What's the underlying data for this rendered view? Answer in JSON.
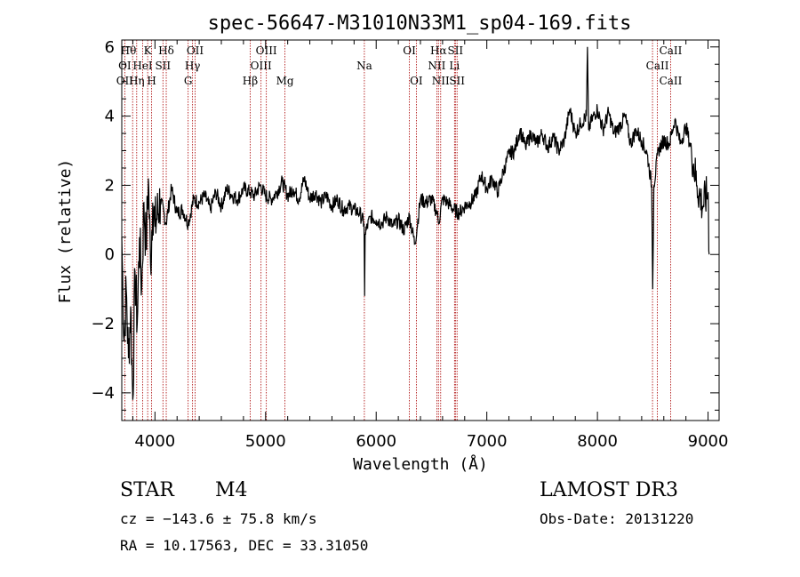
{
  "chart_data": {
    "type": "line",
    "title": "spec-56647-M31010N33M1_sp04-169.fits",
    "xlabel": "Wavelength (Å)",
    "ylabel": "Flux (relative)",
    "xlim": [
      3700,
      9100
    ],
    "ylim": [
      -4.8,
      6.2
    ],
    "xticks": [
      4000,
      5000,
      6000,
      7000,
      8000,
      9000
    ],
    "yticks": [
      -4,
      -2,
      0,
      2,
      4,
      6
    ],
    "series": [
      {
        "name": "flux",
        "x": [
          3700,
          3720,
          3740,
          3760,
          3780,
          3800,
          3820,
          3840,
          3860,
          3880,
          3900,
          3920,
          3940,
          3960,
          3980,
          4000,
          4050,
          4100,
          4150,
          4200,
          4250,
          4300,
          4350,
          4400,
          4450,
          4500,
          4550,
          4600,
          4650,
          4700,
          4750,
          4800,
          4860,
          4900,
          4950,
          5000,
          5050,
          5100,
          5150,
          5200,
          5250,
          5300,
          5350,
          5400,
          5450,
          5500,
          5550,
          5600,
          5650,
          5700,
          5750,
          5800,
          5850,
          5890,
          5895,
          5900,
          5950,
          6000,
          6050,
          6100,
          6150,
          6200,
          6250,
          6300,
          6350,
          6400,
          6450,
          6500,
          6550,
          6563,
          6600,
          6650,
          6700,
          6750,
          6800,
          6850,
          6900,
          6950,
          7000,
          7050,
          7100,
          7150,
          7200,
          7250,
          7300,
          7350,
          7400,
          7450,
          7500,
          7550,
          7600,
          7650,
          7700,
          7750,
          7800,
          7850,
          7900,
          7910,
          7920,
          7950,
          8000,
          8050,
          8100,
          8150,
          8200,
          8250,
          8300,
          8350,
          8400,
          8450,
          8490,
          8500,
          8510,
          8550,
          8600,
          8650,
          8700,
          8750,
          8800,
          8850,
          8900,
          8950,
          9000,
          9010
        ],
        "y": [
          0.5,
          -2.5,
          -1.0,
          -3.0,
          -1.5,
          -4.2,
          -0.5,
          -2.0,
          0.5,
          -1.0,
          1.5,
          0.2,
          2.2,
          -0.3,
          1.5,
          0.8,
          1.6,
          0.9,
          1.9,
          1.2,
          1.3,
          0.9,
          1.6,
          1.5,
          1.7,
          1.3,
          1.8,
          1.4,
          1.9,
          1.7,
          1.6,
          1.9,
          1.8,
          1.7,
          2.0,
          1.7,
          1.6,
          1.8,
          2.1,
          1.7,
          1.9,
          1.6,
          2.2,
          1.6,
          1.8,
          1.5,
          1.7,
          1.4,
          1.6,
          1.3,
          1.4,
          1.3,
          1.2,
          0.9,
          -1.2,
          0.6,
          1.1,
          1.0,
          0.9,
          1.1,
          0.8,
          1.0,
          0.7,
          1.1,
          0.3,
          1.6,
          1.5,
          1.6,
          1.2,
          0.9,
          1.6,
          1.5,
          1.3,
          1.2,
          1.4,
          1.5,
          1.7,
          2.3,
          1.9,
          2.2,
          1.8,
          2.4,
          2.9,
          3.0,
          3.6,
          3.1,
          3.5,
          3.2,
          3.5,
          3.1,
          3.4,
          3.0,
          3.3,
          4.2,
          3.5,
          3.8,
          4.0,
          6.0,
          3.6,
          3.9,
          4.2,
          3.6,
          4.1,
          3.5,
          3.7,
          4.0,
          3.2,
          3.6,
          3.3,
          2.9,
          2.0,
          -1.0,
          2.0,
          3.0,
          3.3,
          3.2,
          3.9,
          3.2,
          3.7,
          3.0,
          2.0,
          1.4,
          1.8,
          0.0
        ]
      }
    ],
    "line_markers": {
      "wavelengths": [
        3727,
        3798,
        3835,
        3889,
        3934,
        3970,
        4072,
        4102,
        4300,
        4340,
        4363,
        4861,
        4959,
        5007,
        5175,
        5893,
        6300,
        6363,
        6548,
        6563,
        6583,
        6708,
        6716,
        6731,
        8498,
        8542,
        8662
      ],
      "labels": [
        {
          "text": "Hθ",
          "wl": 3760,
          "row": 1
        },
        {
          "text": "K",
          "wl": 3934,
          "row": 1
        },
        {
          "text": "Hδ",
          "wl": 4102,
          "row": 1
        },
        {
          "text": "OII",
          "wl": 4363,
          "row": 1
        },
        {
          "text": "OIII",
          "wl": 5007,
          "row": 1
        },
        {
          "text": "OI",
          "wl": 6300,
          "row": 1
        },
        {
          "text": "Hα",
          "wl": 6563,
          "row": 1
        },
        {
          "text": "SII",
          "wl": 6716,
          "row": 1
        },
        {
          "text": "CaII",
          "wl": 8662,
          "row": 1
        },
        {
          "text": "OI",
          "wl": 3727,
          "row": 2
        },
        {
          "text": "HeI",
          "wl": 3889,
          "row": 2
        },
        {
          "text": "SII",
          "wl": 4072,
          "row": 2
        },
        {
          "text": "Hγ",
          "wl": 4340,
          "row": 2
        },
        {
          "text": "OIII",
          "wl": 4959,
          "row": 2
        },
        {
          "text": "Na",
          "wl": 5893,
          "row": 2
        },
        {
          "text": "NII",
          "wl": 6548,
          "row": 2
        },
        {
          "text": "Li",
          "wl": 6708,
          "row": 2
        },
        {
          "text": "CaII",
          "wl": 8542,
          "row": 2
        },
        {
          "text": "OII",
          "wl": 3727,
          "row": 3
        },
        {
          "text": "Hη",
          "wl": 3835,
          "row": 3
        },
        {
          "text": "H",
          "wl": 3970,
          "row": 3
        },
        {
          "text": "G",
          "wl": 4300,
          "row": 3
        },
        {
          "text": "Hβ",
          "wl": 4861,
          "row": 3
        },
        {
          "text": "Mg",
          "wl": 5175,
          "row": 3
        },
        {
          "text": "OI",
          "wl": 6363,
          "row": 3
        },
        {
          "text": "NII",
          "wl": 6583,
          "row": 3
        },
        {
          "text": "SII",
          "wl": 6731,
          "row": 3
        },
        {
          "text": "CaII",
          "wl": 8662,
          "row": 3
        }
      ]
    }
  },
  "info": {
    "object_type": "STAR",
    "subclass": "M4",
    "survey": "LAMOST DR3",
    "cz": "cz = −143.6 ± 75.8 km/s",
    "obs_date": "Obs-Date: 20131220",
    "coords": "RA =  10.17563, DEC =  33.31050"
  },
  "colors": {
    "marker": "#aa0000",
    "line": "#000000"
  }
}
